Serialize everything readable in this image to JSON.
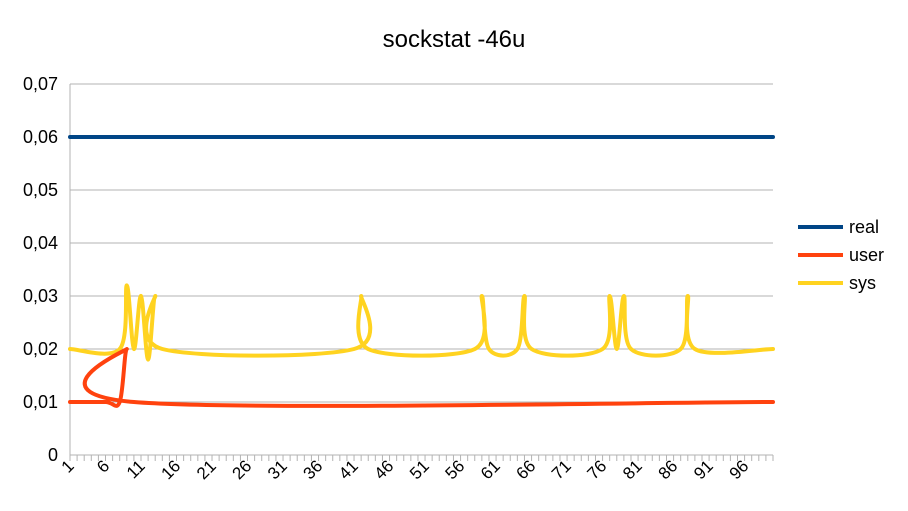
{
  "chart_data": {
    "type": "line",
    "title": "sockstat -46u",
    "xlabel": "",
    "ylabel": "",
    "ylim": [
      0,
      0.07
    ],
    "y_ticks": [
      "0",
      "0,01",
      "0,02",
      "0,03",
      "0,04",
      "0,05",
      "0,06",
      "0,07"
    ],
    "x_range": [
      1,
      100
    ],
    "x_tick_labels": [
      "1",
      "6",
      "11",
      "16",
      "21",
      "26",
      "31",
      "36",
      "41",
      "46",
      "51",
      "56",
      "61",
      "66",
      "71",
      "76",
      "81",
      "86",
      "91",
      "96"
    ],
    "legend_position": "right",
    "grid": true,
    "series": [
      {
        "name": "real",
        "color": "#004586",
        "points": [
          [
            1,
            0.06
          ],
          [
            100,
            0.06
          ]
        ]
      },
      {
        "name": "user",
        "color": "#ff420e",
        "points": [
          [
            1,
            0.01
          ],
          [
            6,
            0.01
          ],
          [
            8,
            0.01
          ],
          [
            9,
            0.02
          ],
          [
            10,
            0.01
          ],
          [
            100,
            0.01
          ]
        ]
      },
      {
        "name": "sys",
        "color": "#ffd320",
        "points": [
          [
            1,
            0.02
          ],
          [
            8,
            0.02
          ],
          [
            9,
            0.032
          ],
          [
            10,
            0.02
          ],
          [
            11,
            0.03
          ],
          [
            12,
            0.018
          ],
          [
            13,
            0.03
          ],
          [
            14,
            0.02
          ],
          [
            41,
            0.02
          ],
          [
            42,
            0.03
          ],
          [
            43,
            0.02
          ],
          [
            58,
            0.02
          ],
          [
            59,
            0.03
          ],
          [
            60,
            0.02
          ],
          [
            64,
            0.02
          ],
          [
            65,
            0.03
          ],
          [
            66,
            0.02
          ],
          [
            76,
            0.02
          ],
          [
            77,
            0.03
          ],
          [
            78,
            0.02
          ],
          [
            79,
            0.03
          ],
          [
            80,
            0.02
          ],
          [
            87,
            0.02
          ],
          [
            88,
            0.03
          ],
          [
            89,
            0.02
          ],
          [
            100,
            0.02
          ]
        ]
      }
    ]
  }
}
